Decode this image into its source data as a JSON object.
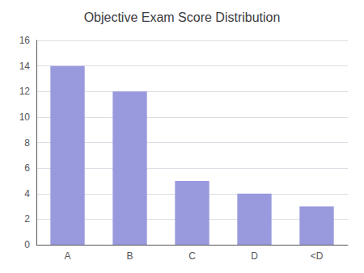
{
  "chart_data": {
    "type": "bar",
    "title": "Objective Exam Score Distribution",
    "categories": [
      "A",
      "B",
      "C",
      "D",
      "<D"
    ],
    "values": [
      14,
      12,
      5,
      4,
      3
    ],
    "color": "#9999dd",
    "ylim": [
      0,
      16
    ],
    "yticks": [
      0,
      2,
      4,
      6,
      8,
      10,
      12,
      14,
      16
    ],
    "grid": true
  }
}
